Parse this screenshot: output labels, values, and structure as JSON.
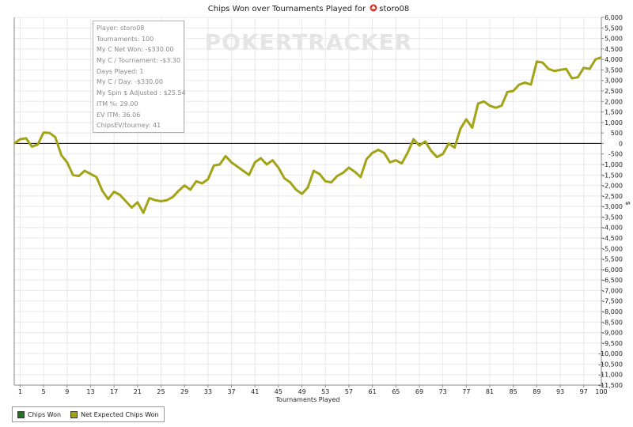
{
  "title_prefix": "Chips Won over Tournaments Played for",
  "player_name": "storo08",
  "colors": {
    "chips_won": "#1a7a1a",
    "net_expected": "#a3a317",
    "zero_line": "#000000",
    "grid": "#e8e8e8"
  },
  "info_box": [
    "Player: storo08",
    "Tournaments: 100",
    "My C Net Won: -$330.00",
    "My C / Tournament: -$3.30",
    "Days Played: 1",
    "My C / Day: -$330.00",
    "My Spin $ Adjusted : $25.54",
    "ITM %: 29.00",
    "EV ITM: 36.06",
    "ChipsEV/tourney: 41"
  ],
  "watermark": "POKERTRACKER",
  "legend": [
    {
      "label": "Chips Won",
      "color": "#1a7a1a"
    },
    {
      "label": "Net Expected Chips Won",
      "color": "#a3a317"
    }
  ],
  "chart_data": {
    "type": "line",
    "title": "Chips Won over Tournaments Played for storo08",
    "xlabel": "Tournaments Played",
    "ylabel": "$",
    "xlim": [
      0,
      100
    ],
    "ylim": [
      -11500,
      6000
    ],
    "x_ticks": [
      "1",
      "5",
      "9",
      "13",
      "17",
      "21",
      "25",
      "29",
      "33",
      "37",
      "41",
      "45",
      "49",
      "53",
      "57",
      "61",
      "65",
      "69",
      "73",
      "77",
      "81",
      "85",
      "89",
      "93",
      "97",
      "100"
    ],
    "y_ticks": [
      "6,000",
      "5,500",
      "5,000",
      "4,500",
      "4,000",
      "3,500",
      "3,000",
      "2,500",
      "2,000",
      "1,500",
      "1,000",
      "500",
      "0",
      "-500",
      "-1,000",
      "-1,500",
      "-2,000",
      "-2,500",
      "-3,000",
      "-3,500",
      "-4,000",
      "-4,500",
      "-5,000",
      "-5,500",
      "-6,000",
      "-6,500",
      "-7,000",
      "-7,500",
      "-8,000",
      "-8,500",
      "-9,000",
      "-9,500",
      "-10,000",
      "-10,500",
      "-11,000",
      "-11,500"
    ],
    "series": [
      {
        "name": "Net Expected Chips Won",
        "x": [
          0,
          1,
          2,
          3,
          4,
          5,
          6,
          7,
          8,
          9,
          10,
          11,
          12,
          13,
          14,
          15,
          16,
          17,
          18,
          19,
          20,
          21,
          22,
          23,
          24,
          25,
          26,
          27,
          28,
          29,
          30,
          31,
          32,
          33,
          34,
          35,
          36,
          37,
          38,
          39,
          40,
          41,
          42,
          43,
          44,
          45,
          46,
          47,
          48,
          49,
          50,
          51,
          52,
          53,
          54,
          55,
          56,
          57,
          58,
          59,
          60,
          61,
          62,
          63,
          64,
          65,
          66,
          67,
          68,
          69,
          70,
          71,
          72,
          73,
          74,
          75,
          76,
          77,
          78,
          79,
          80,
          81,
          82,
          83,
          84,
          85,
          86,
          87,
          88,
          89,
          90,
          91,
          92,
          93,
          94,
          95,
          96,
          97,
          98,
          99,
          100
        ],
        "values": [
          0,
          200,
          250,
          -150,
          -50,
          520,
          500,
          300,
          -550,
          -900,
          -1500,
          -1550,
          -1300,
          -1450,
          -1600,
          -2250,
          -2650,
          -2300,
          -2450,
          -2750,
          -3050,
          -2800,
          -3300,
          -2600,
          -2700,
          -2750,
          -2700,
          -2550,
          -2250,
          -2000,
          -2200,
          -1800,
          -1900,
          -1700,
          -1050,
          -1000,
          -600,
          -900,
          -1100,
          -1300,
          -1500,
          -900,
          -700,
          -1000,
          -800,
          -1150,
          -1650,
          -1850,
          -2200,
          -2400,
          -2100,
          -1300,
          -1450,
          -1800,
          -1850,
          -1550,
          -1400,
          -1150,
          -1350,
          -1600,
          -750,
          -450,
          -300,
          -450,
          -900,
          -800,
          -950,
          -450,
          200,
          -100,
          100,
          -350,
          -650,
          -500,
          0,
          -200,
          700,
          1150,
          750,
          1900,
          2000,
          1800,
          1700,
          1800,
          2450,
          2500,
          2800,
          2900,
          2800,
          3900,
          3850,
          3550,
          3450,
          3500,
          3550,
          3100,
          3150,
          3600,
          3550,
          4000,
          4100
        ]
      }
    ]
  }
}
